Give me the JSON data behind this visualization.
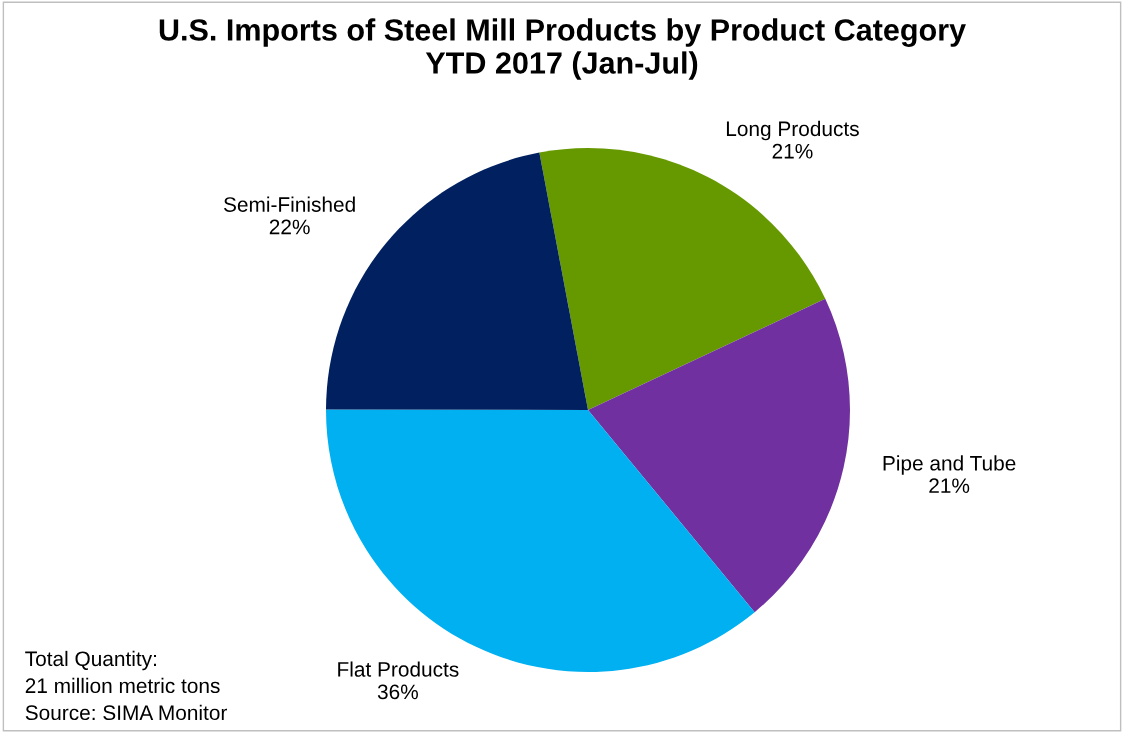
{
  "chart_data": {
    "type": "pie",
    "title": "U.S. Imports of Steel Mill Products by Product Category\nYTD 2017 (Jan-Jul)",
    "categories": [
      "Long Products",
      "Pipe and Tube",
      "Flat Products",
      "Semi-Finished"
    ],
    "values": [
      21,
      21,
      36,
      22
    ],
    "value_labels": [
      "21%",
      "21%",
      "36%",
      "22%"
    ],
    "colors": [
      "#669900",
      "#7030a0",
      "#00b0f0",
      "#002060"
    ],
    "annotations": [
      "Total Quantity:\n21 million metric tons\nSource: SIMA Monitor"
    ],
    "legend": false
  }
}
